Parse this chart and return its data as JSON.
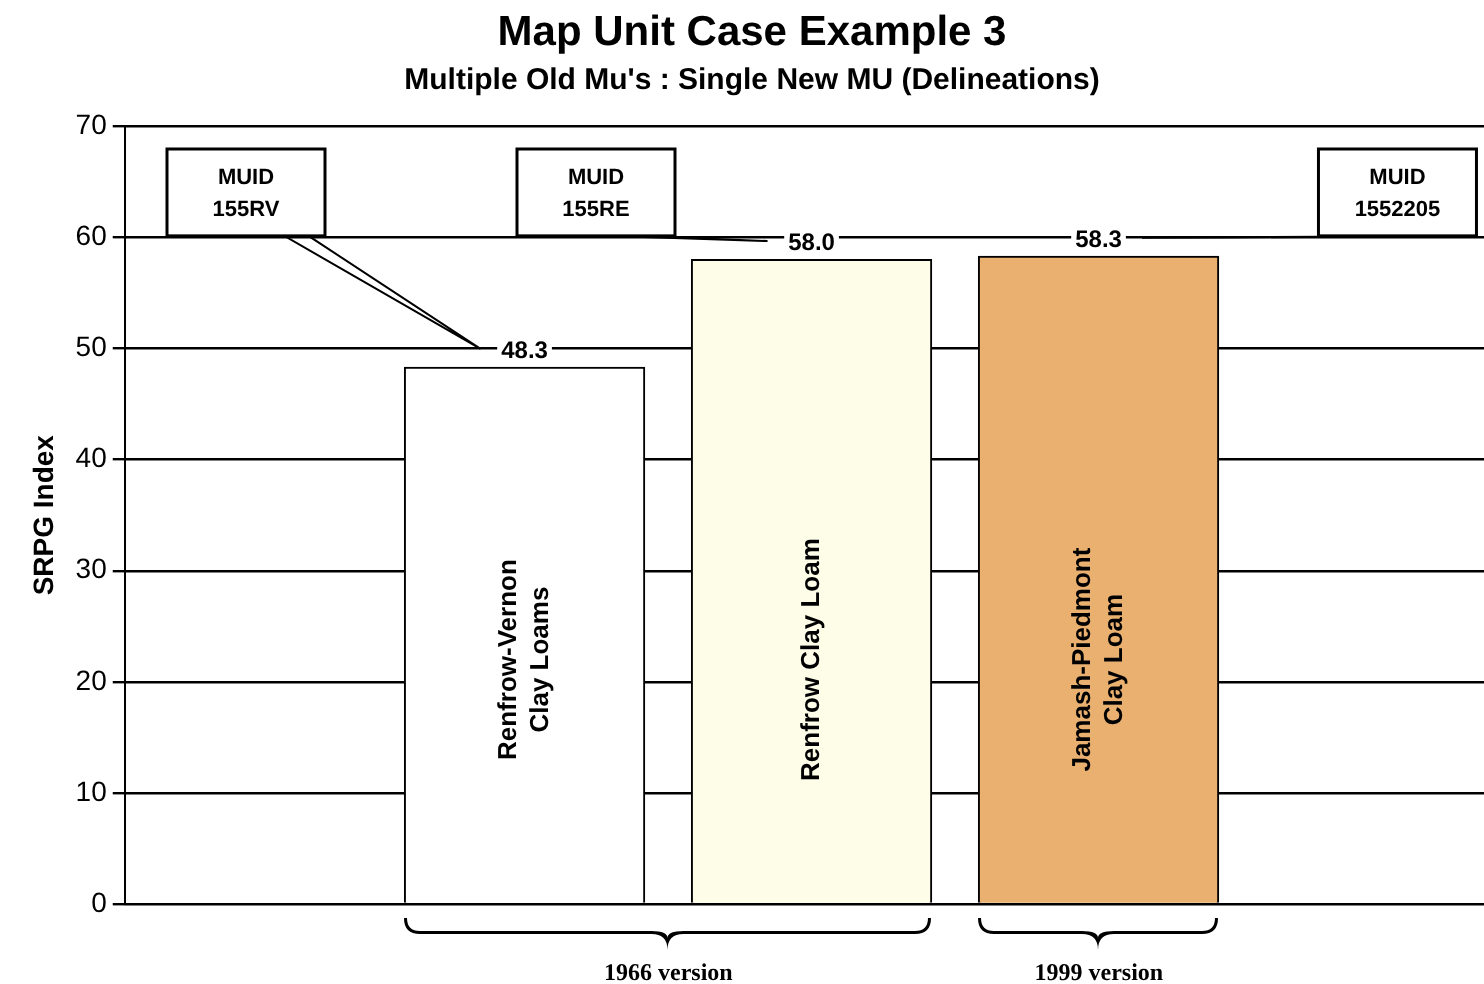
{
  "chart_data": {
    "type": "bar",
    "title": "Map Unit Case Example 3",
    "subtitle": "Multiple Old Mu's : Single New MU (Delineations)",
    "ylabel": "SRPG Index",
    "categories": [
      "Renfrow-Vernon\nClay Loams",
      "Renfrow Clay Loam",
      "Jamash-Piedmont\nClay Loam"
    ],
    "values": [
      48.3,
      58.0,
      58.3
    ],
    "colors": [
      "#ffffff",
      "#fdfde8",
      "#e9b070"
    ],
    "value_labels": [
      "48.3",
      "58.0",
      "58.3"
    ],
    "ylim": [
      0,
      70
    ],
    "yticks": [
      0,
      10,
      20,
      30,
      40,
      50,
      60,
      70
    ],
    "grid": "y",
    "legend": false,
    "annotations": [
      "MUID\n155RV",
      "MUID\n155RE",
      "MUID\n1552205",
      "1966 version",
      "1999 version"
    ]
  }
}
